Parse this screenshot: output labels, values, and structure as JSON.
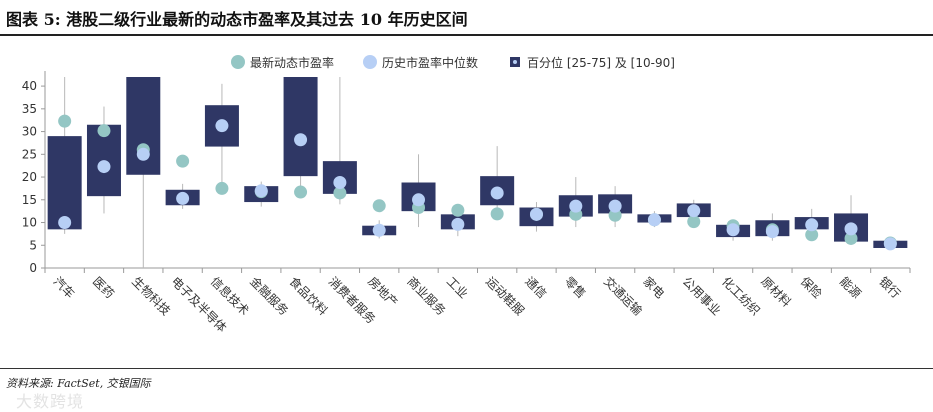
{
  "title": "图表 5: 港股二级行业最新的动态市盈率及其过去 10 年历史区间",
  "source": "资料来源: FactSet, 交银国际",
  "watermark": "大数跨境",
  "colors": {
    "box": "#2f3765",
    "latest": "#94c6c4",
    "median": "#b7cff5",
    "whisker": "#b8b8b8",
    "axis": "#9a9a9a"
  },
  "chart_data": {
    "type": "box",
    "title": "港股二级行业最新的动态市盈率及其过去 10 年历史区间",
    "legend": [
      "最新动态市盈率",
      "历史市盈率中位数",
      "百分位 [25-75] 及 [10-90]"
    ],
    "legend_position": "top-right",
    "ylim": [
      0,
      42
    ],
    "yticks": [
      0,
      5,
      10,
      15,
      20,
      25,
      30,
      35,
      40
    ],
    "categories": [
      "汽车",
      "医药",
      "生物科技",
      "电子及半导体",
      "信息技术",
      "金融服务",
      "食品饮料",
      "消费者服务",
      "房地产",
      "商业服务",
      "工业",
      "运动鞋服",
      "通信",
      "零售",
      "交通运输",
      "家电",
      "公用事业",
      "化工纺织",
      "原材料",
      "保险",
      "能源",
      "银行"
    ],
    "p10": [
      7.5,
      12,
      0,
      13,
      17,
      13.5,
      18,
      14,
      6.5,
      9,
      7,
      11,
      8,
      9,
      9,
      9,
      10,
      6,
      6,
      7,
      5.5,
      4.2
    ],
    "p25": [
      8.5,
      15.8,
      20.5,
      13.8,
      26.7,
      14.5,
      20.2,
      16.3,
      7.2,
      12.5,
      8.5,
      13.8,
      9.2,
      11.3,
      12,
      10,
      11.2,
      6.8,
      7,
      8.5,
      5.8,
      4.4
    ],
    "p75": [
      29,
      31.5,
      42,
      17.2,
      35.8,
      18,
      42,
      23.5,
      9.3,
      18.8,
      11.8,
      20.2,
      13.3,
      16,
      16.2,
      11.8,
      14.2,
      9.5,
      10.5,
      11.2,
      12,
      6
    ],
    "p90": [
      42,
      35.5,
      42,
      18.5,
      40.5,
      19,
      42,
      42,
      10.5,
      25,
      13,
      26.8,
      14.5,
      20,
      18,
      12.5,
      15,
      10,
      12,
      13,
      16,
      6.5
    ],
    "latest": [
      32.3,
      30.2,
      26,
      23.5,
      17.5,
      16.8,
      16.7,
      16.5,
      13.7,
      13.3,
      12.7,
      11.9,
      11.8,
      11.8,
      11.6,
      10.6,
      10.2,
      9.3,
      8.4,
      7.3,
      6.5,
      5.5
    ],
    "median": [
      10,
      22.3,
      25,
      15.3,
      31.3,
      17,
      28.2,
      18.8,
      8.3,
      15,
      9.6,
      16.5,
      11.8,
      13.6,
      13.6,
      10.6,
      12.6,
      8.4,
      8,
      9.5,
      8.6,
      5.3
    ]
  }
}
